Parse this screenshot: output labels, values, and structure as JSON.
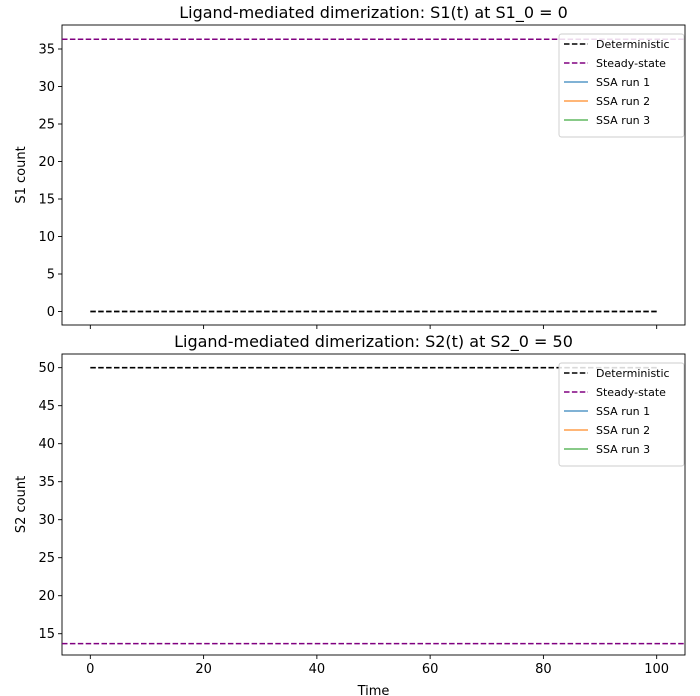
{
  "chart_data": [
    {
      "type": "line",
      "title": "Ligand-mediated dimerization: S1(t) at S1_0 = 0",
      "xlabel": "",
      "ylabel": "S1 count",
      "xlim": [
        -5,
        105
      ],
      "ylim": [
        -1.8,
        38.2
      ],
      "xticks": [
        0,
        20,
        40,
        60,
        80,
        100
      ],
      "show_xtick_labels": false,
      "yticks": [
        0,
        5,
        10,
        15,
        20,
        25,
        30,
        35
      ],
      "grid": false,
      "legend_position": "top-right",
      "series": [
        {
          "name": "Deterministic",
          "style": "dashed",
          "color": "#000000",
          "x": [
            0,
            100
          ],
          "y": [
            0,
            0
          ]
        },
        {
          "name": "Steady-state",
          "style": "dashed-hline",
          "color": "#800080",
          "y": 36.3
        },
        {
          "name": "SSA run 1",
          "style": "solid",
          "color": "#1f77b4",
          "x": [],
          "y": []
        },
        {
          "name": "SSA run 2",
          "style": "solid",
          "color": "#ff7f0e",
          "x": [],
          "y": []
        },
        {
          "name": "SSA run 3",
          "style": "solid",
          "color": "#2ca02c",
          "x": [],
          "y": []
        }
      ]
    },
    {
      "type": "line",
      "title": "Ligand-mediated dimerization: S2(t) at S2_0 = 50",
      "xlabel": "Time",
      "ylabel": "S2 count",
      "xlim": [
        -5,
        105
      ],
      "ylim": [
        12.2,
        51.8
      ],
      "xticks": [
        0,
        20,
        40,
        60,
        80,
        100
      ],
      "show_xtick_labels": true,
      "yticks": [
        15,
        20,
        25,
        30,
        35,
        40,
        45,
        50
      ],
      "grid": false,
      "legend_position": "top-right",
      "series": [
        {
          "name": "Deterministic",
          "style": "dashed",
          "color": "#000000",
          "x": [
            0,
            100
          ],
          "y": [
            50,
            50
          ]
        },
        {
          "name": "Steady-state",
          "style": "dashed-hline",
          "color": "#800080",
          "y": 13.7
        },
        {
          "name": "SSA run 1",
          "style": "solid",
          "color": "#1f77b4",
          "x": [],
          "y": []
        },
        {
          "name": "SSA run 2",
          "style": "solid",
          "color": "#ff7f0e",
          "x": [],
          "y": []
        },
        {
          "name": "SSA run 3",
          "style": "solid",
          "color": "#2ca02c",
          "x": [],
          "y": []
        }
      ]
    }
  ]
}
